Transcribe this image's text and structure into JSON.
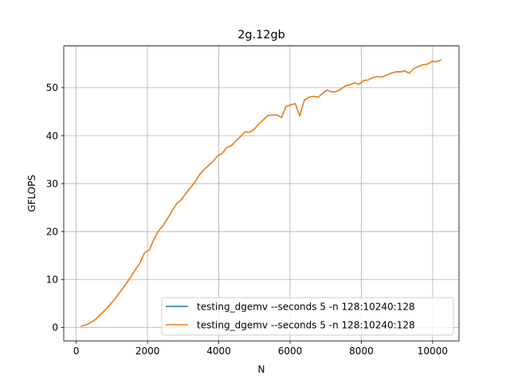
{
  "chart_data": {
    "type": "line",
    "title": "2g.12gb",
    "xlabel": "N",
    "ylabel": "GFLOPS",
    "xlim": [
      -350,
      10740
    ],
    "ylim": [
      -2.8,
      58.7
    ],
    "xticks": [
      0,
      2000,
      4000,
      6000,
      8000,
      10000
    ],
    "yticks": [
      0,
      10,
      20,
      30,
      40,
      50
    ],
    "grid": true,
    "legend_position": "lower-right",
    "x": [
      128,
      256,
      384,
      512,
      640,
      768,
      896,
      1024,
      1152,
      1280,
      1408,
      1536,
      1664,
      1792,
      1920,
      2048,
      2176,
      2304,
      2432,
      2560,
      2688,
      2816,
      2944,
      3072,
      3200,
      3328,
      3456,
      3584,
      3712,
      3840,
      3968,
      4096,
      4224,
      4352,
      4480,
      4608,
      4736,
      4864,
      4992,
      5120,
      5248,
      5376,
      5504,
      5632,
      5760,
      5888,
      6016,
      6144,
      6272,
      6400,
      6528,
      6656,
      6784,
      6912,
      7040,
      7168,
      7296,
      7424,
      7552,
      7680,
      7808,
      7936,
      8064,
      8192,
      8320,
      8448,
      8576,
      8704,
      8832,
      8960,
      9088,
      9216,
      9344,
      9472,
      9600,
      9728,
      9856,
      9984,
      10112,
      10240
    ],
    "series": [
      {
        "name": "testing_dgemv --seconds 5 -n 128:10240:128",
        "color": "#1f77b4",
        "values": [
          0.2,
          0.5,
          0.9,
          1.5,
          2.4,
          3.3,
          4.3,
          5.4,
          6.6,
          7.9,
          9.2,
          10.6,
          12.1,
          13.5,
          15.6,
          16.1,
          18.3,
          20.1,
          21.2,
          22.7,
          24.3,
          25.8,
          26.6,
          27.9,
          29.1,
          30.3,
          31.8,
          32.9,
          33.8,
          34.6,
          35.8,
          36.3,
          37.5,
          37.9,
          38.9,
          39.8,
          40.8,
          40.7,
          41.3,
          42.4,
          43.3,
          44.2,
          44.3,
          44.3,
          43.8,
          46.1,
          46.4,
          46.7,
          44.1,
          47.4,
          48.0,
          48.2,
          48.0,
          48.8,
          49.5,
          49.1,
          49.2,
          49.7,
          50.4,
          50.6,
          51.0,
          50.7,
          51.5,
          51.6,
          52.1,
          52.3,
          52.2,
          52.6,
          53.0,
          53.3,
          53.3,
          53.5,
          53.0,
          54.0,
          54.4,
          54.8,
          54.9,
          55.5,
          55.4,
          55.8
        ]
      },
      {
        "name": "testing_dgemv --seconds 5 -n 128:10240:128",
        "color": "#ff7f0e",
        "values": [
          0.2,
          0.5,
          0.9,
          1.5,
          2.4,
          3.3,
          4.3,
          5.4,
          6.6,
          7.9,
          9.2,
          10.6,
          12.1,
          13.5,
          15.6,
          16.1,
          18.3,
          20.1,
          21.2,
          22.7,
          24.3,
          25.8,
          26.6,
          27.9,
          29.1,
          30.3,
          31.8,
          32.9,
          33.8,
          34.6,
          35.8,
          36.3,
          37.5,
          37.9,
          38.9,
          39.8,
          40.8,
          40.7,
          41.3,
          42.4,
          43.3,
          44.2,
          44.3,
          44.3,
          43.8,
          46.1,
          46.4,
          46.7,
          44.1,
          47.4,
          48.0,
          48.2,
          48.0,
          48.8,
          49.5,
          49.1,
          49.2,
          49.7,
          50.4,
          50.6,
          51.0,
          50.7,
          51.5,
          51.6,
          52.1,
          52.3,
          52.2,
          52.6,
          53.0,
          53.3,
          53.3,
          53.5,
          53.0,
          54.0,
          54.4,
          54.8,
          54.9,
          55.5,
          55.4,
          55.8
        ]
      }
    ]
  }
}
